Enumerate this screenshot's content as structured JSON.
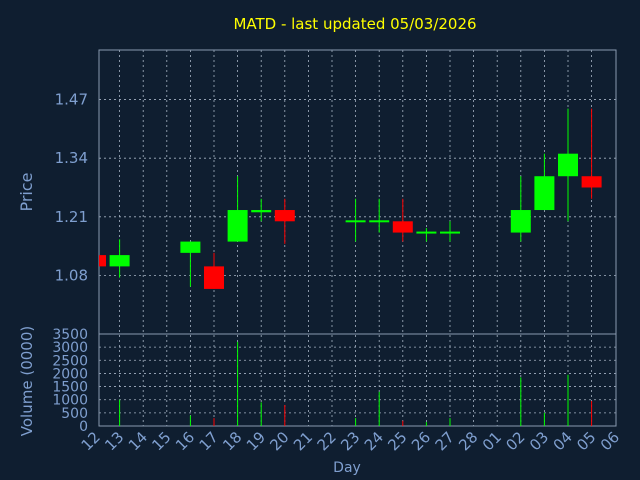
{
  "chart_data": {
    "type": "candlestick",
    "title": "MATD - last updated 05/03/2026",
    "xlabel": "Day",
    "price_panel": {
      "ylabel": "Price",
      "ylim": [
        0.95,
        1.58
      ],
      "yticks": [
        1.08,
        1.21,
        1.34,
        1.47
      ],
      "ytick_labels": [
        "1.08",
        "1.21",
        "1.34",
        "1.47"
      ],
      "grid": true
    },
    "volume_panel": {
      "ylabel": "Volume (0000)",
      "ylim": [
        0,
        3500
      ],
      "yticks": [
        0,
        500,
        1000,
        1500,
        2000,
        2500,
        3000,
        3500
      ],
      "ytick_labels": [
        "0",
        "500",
        "1000",
        "1500",
        "2000",
        "2500",
        "3000",
        "3500"
      ],
      "grid": true
    },
    "x_tick_labels": [
      "12",
      "13",
      "14",
      "15",
      "16",
      "17",
      "18",
      "19",
      "20",
      "21",
      "22",
      "23",
      "24",
      "25",
      "26",
      "27",
      "28",
      "01",
      "02",
      "03",
      "04",
      "05",
      "06"
    ],
    "candles": [
      {
        "x": 0,
        "open": 1.125,
        "high": 1.125,
        "low": 1.1,
        "close": 1.1,
        "volume": 0
      },
      {
        "x": 1,
        "open": 1.1,
        "high": 1.16,
        "low": 1.075,
        "close": 1.125,
        "volume": 1000
      },
      {
        "x": 4,
        "open": 1.13,
        "high": 1.155,
        "low": 1.055,
        "close": 1.155,
        "volume": 400
      },
      {
        "x": 5,
        "open": 1.1,
        "high": 1.13,
        "low": 1.05,
        "close": 1.05,
        "volume": 300
      },
      {
        "x": 6,
        "open": 1.155,
        "high": 1.3,
        "low": 1.155,
        "close": 1.225,
        "volume": 3200
      },
      {
        "x": 7,
        "open": 1.22,
        "high": 1.25,
        "low": 1.2,
        "close": 1.225,
        "volume": 900
      },
      {
        "x": 8,
        "open": 1.225,
        "high": 1.25,
        "low": 1.15,
        "close": 1.2,
        "volume": 800
      },
      {
        "x": 11,
        "open": 1.2,
        "high": 1.25,
        "low": 1.155,
        "close": 1.2,
        "volume": 300
      },
      {
        "x": 12,
        "open": 1.2,
        "high": 1.25,
        "low": 1.175,
        "close": 1.2,
        "volume": 1300
      },
      {
        "x": 13,
        "open": 1.2,
        "high": 1.25,
        "low": 1.155,
        "close": 1.175,
        "volume": 200
      },
      {
        "x": 14,
        "open": 1.175,
        "high": 1.185,
        "low": 1.155,
        "close": 1.175,
        "volume": 150
      },
      {
        "x": 15,
        "open": 1.175,
        "high": 1.2,
        "low": 1.155,
        "close": 1.175,
        "volume": 300
      },
      {
        "x": 18,
        "open": 1.175,
        "high": 1.3,
        "low": 1.155,
        "close": 1.225,
        "volume": 1850
      },
      {
        "x": 19,
        "open": 1.225,
        "high": 1.35,
        "low": 1.225,
        "close": 1.3,
        "volume": 500
      },
      {
        "x": 20,
        "open": 1.3,
        "high": 1.45,
        "low": 1.2,
        "close": 1.35,
        "volume": 1950
      },
      {
        "x": 21,
        "open": 1.3,
        "high": 1.45,
        "low": 1.25,
        "close": 1.275,
        "volume": 950
      }
    ],
    "colors": {
      "up": "#00ff00",
      "down": "#ff0000",
      "background": "#0f1e30",
      "plot_border": "#8a9ab0",
      "grid": "#a6b3c4",
      "title": "#ffff00",
      "axis_text": "#7f9fcf"
    }
  }
}
